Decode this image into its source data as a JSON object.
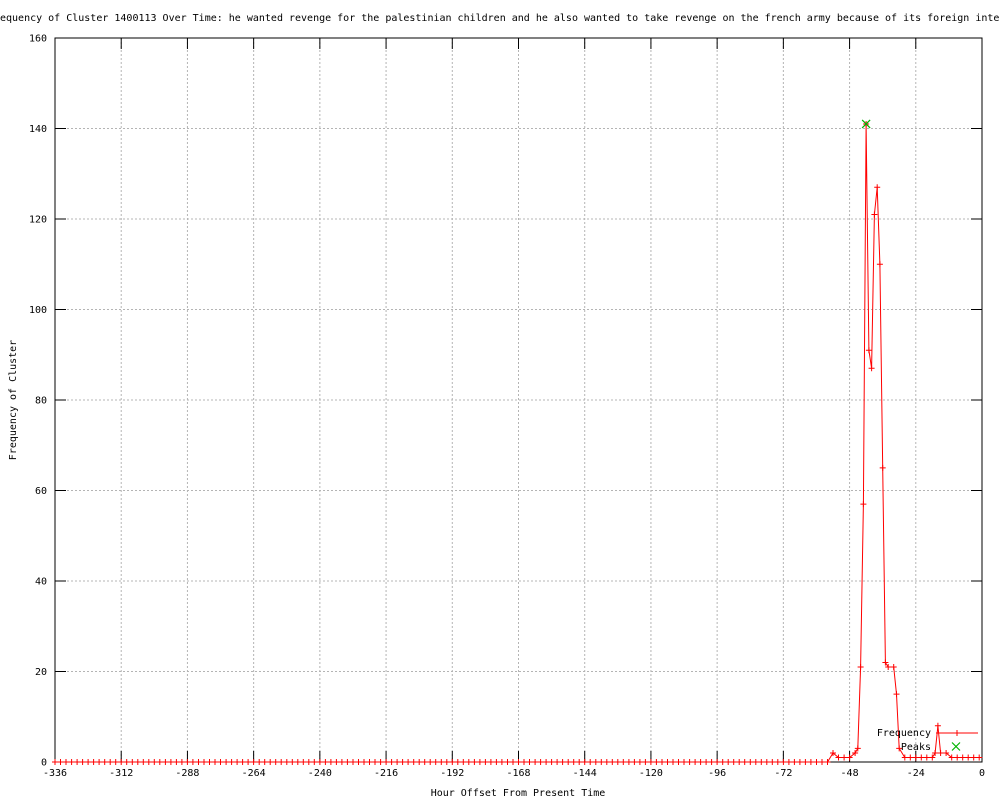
{
  "title_visible": "equency of Cluster 1400113 Over Time: he wanted revenge for the palestinian children and he also wanted to take revenge on the french army because of its foreign inter",
  "chart_data": {
    "type": "line",
    "title": "equency of Cluster 1400113 Over Time: he wanted revenge for the palestinian children and he also wanted to take revenge on the french army because of its foreign inter",
    "xlabel": "Hour Offset From Present Time",
    "ylabel": "Frequency of Cluster",
    "xlim": [
      -336,
      0
    ],
    "ylim": [
      0,
      160
    ],
    "x_ticks": [
      -336,
      -312,
      -288,
      -264,
      -240,
      -216,
      -192,
      -168,
      -144,
      -120,
      -96,
      -72,
      -48,
      -24,
      0
    ],
    "y_ticks": [
      0,
      20,
      40,
      60,
      80,
      100,
      120,
      140,
      160
    ],
    "grid": true,
    "legend_position": "bottom-right",
    "series": [
      {
        "name": "Frequency",
        "color": "#ff0000",
        "style": "linespoints",
        "marker": "plus",
        "baseline": {
          "x_from": -336,
          "x_to": -58,
          "x_step": 2,
          "value": 0
        },
        "points": [
          [
            -56,
            0
          ],
          [
            -54,
            2
          ],
          [
            -52,
            1
          ],
          [
            -50,
            1
          ],
          [
            -48,
            1
          ],
          [
            -46,
            2
          ],
          [
            -45,
            3
          ],
          [
            -44,
            21
          ],
          [
            -43,
            57
          ],
          [
            -42,
            141
          ],
          [
            -41,
            91
          ],
          [
            -40,
            87
          ],
          [
            -39,
            121
          ],
          [
            -38,
            127
          ],
          [
            -37,
            110
          ],
          [
            -36,
            65
          ],
          [
            -35,
            22
          ],
          [
            -34,
            21
          ],
          [
            -32,
            21
          ],
          [
            -31,
            15
          ],
          [
            -30,
            3
          ],
          [
            -28,
            1
          ],
          [
            -26,
            1
          ],
          [
            -24,
            1
          ],
          [
            -22,
            1
          ],
          [
            -20,
            1
          ],
          [
            -18,
            1
          ],
          [
            -17,
            2
          ],
          [
            -16,
            8
          ],
          [
            -15,
            2
          ],
          [
            -13,
            2
          ],
          [
            -11,
            1
          ],
          [
            -9,
            1
          ],
          [
            -7,
            1
          ],
          [
            -5,
            1
          ],
          [
            -3,
            1
          ],
          [
            -1,
            1
          ]
        ]
      },
      {
        "name": "Peaks",
        "color": "#00b400",
        "style": "points",
        "marker": "cross",
        "points": [
          [
            -42,
            141
          ]
        ]
      }
    ]
  },
  "colors": {
    "background": "#ffffff",
    "border": "#000000",
    "grid": "#b4b4b4",
    "text": "#000000",
    "series_frequency": "#ff0000",
    "series_peaks": "#00b400"
  }
}
